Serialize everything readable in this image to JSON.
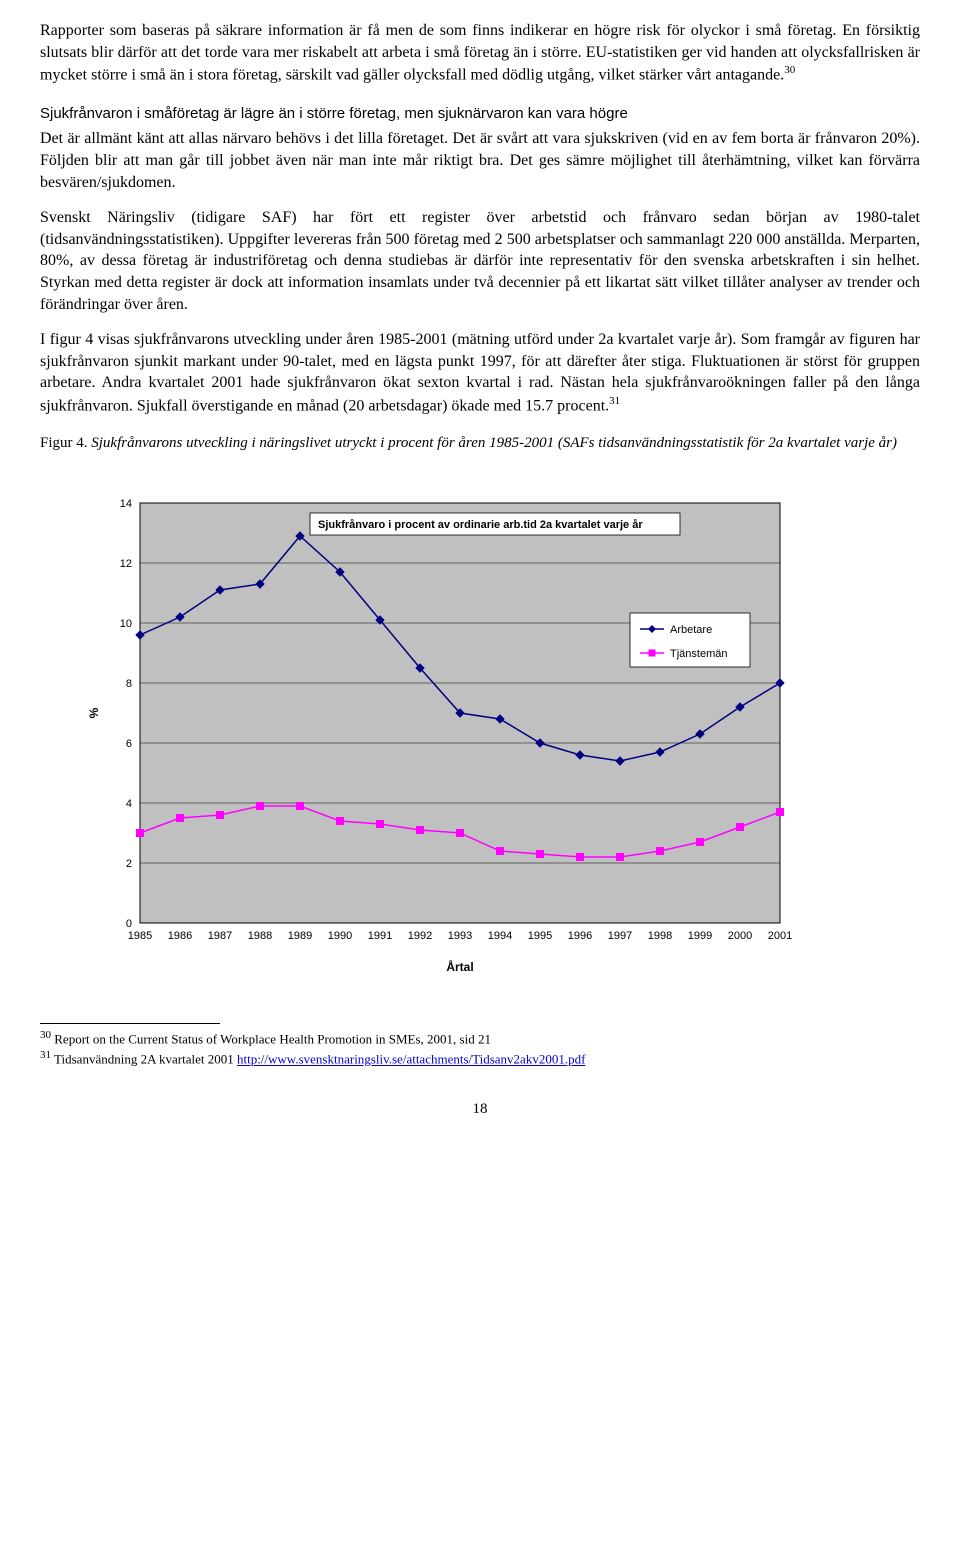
{
  "paragraphs": {
    "p1": "Rapporter som baseras på säkrare information är få men de som finns indikerar en högre risk för olyckor i små företag. En försiktig slutsats blir därför att det torde vara mer riskabelt att arbeta i små företag än i större. EU-statistiken ger vid handen att olycksfallrisken är mycket större i små än i stora företag, särskilt vad gäller olycksfall med dödlig utgång, vilket stärker vårt antagande.",
    "p1_sup": "30",
    "subheading": "Sjukfrånvaron i småföretag är lägre än i större företag, men sjuknärvaron kan vara högre",
    "p2": "Det är allmänt känt att allas närvaro behövs i det lilla företaget. Det är svårt att vara sjukskriven (vid en av fem borta är frånvaron 20%). Följden blir att man går till jobbet även när man inte mår riktigt bra. Det ges sämre möjlighet till återhämtning, vilket kan förvärra besvären/sjukdomen.",
    "p3": "Svenskt Näringsliv (tidigare SAF) har fört ett register över arbetstid och frånvaro sedan början av 1980-talet (tidsanvändningsstatistiken). Uppgifter levereras från 500 företag med 2 500 arbetsplatser och sammanlagt 220 000 anställda. Merparten, 80%, av dessa företag är industriföretag och denna studiebas är därför inte representativ för den svenska arbetskraften i sin helhet. Styrkan med detta register är dock att information insamlats under två decennier på ett likartat sätt vilket tillåter analyser av trender och förändringar över åren.",
    "p4_a": "I figur 4 visas sjukfrånvarons utveckling under åren 1985-2001 (mätning utförd under 2a kvartalet varje år). Som framgår av figuren har sjukfrånvaron sjunkit markant under 90-talet, med en lägsta punkt 1997, för att därefter åter stiga. Fluktuationen är störst för gruppen arbetare. Andra kvartalet 2001 hade sjukfrånvaron ökat sexton kvartal i rad. Nästan hela sjukfrånvaroökningen faller på den långa sjukfrånvaron. Sjukfall överstigande en månad (20 arbetsdagar) ökade med 15.7 procent.",
    "p4_sup": "31"
  },
  "figure": {
    "label": "Figur 4. ",
    "caption_italic": "Sjukfrånvarons utveckling i näringslivet utryckt i procent för åren 1985-2001 (SAFs tidsanvändningsstatistik för 2a kvartalet varje år)"
  },
  "chart": {
    "type": "line",
    "title": "Sjukfrånvaro i procent av ordinarie arb.tid 2a kvartalet varje år",
    "x_label": "Årtal",
    "y_label": "%",
    "categories": [
      "1985",
      "1986",
      "1987",
      "1988",
      "1989",
      "1990",
      "1991",
      "1992",
      "1993",
      "1994",
      "1995",
      "1996",
      "1997",
      "1998",
      "1999",
      "2000",
      "2001"
    ],
    "ylim": [
      0,
      14
    ],
    "ytick_step": 2,
    "background_color": "#c0c0c0",
    "grid_color": "#000000",
    "series": [
      {
        "name": "Arbetare",
        "color": "#000080",
        "marker": "diamond",
        "values": [
          9.6,
          10.2,
          11.1,
          11.3,
          12.9,
          11.7,
          10.1,
          8.5,
          7.0,
          6.8,
          6.0,
          5.6,
          5.4,
          5.7,
          6.3,
          7.2,
          8.0
        ]
      },
      {
        "name": "Tjänstemän",
        "color": "#ff00ff",
        "marker": "square",
        "values": [
          3.0,
          3.5,
          3.6,
          3.9,
          3.9,
          3.4,
          3.3,
          3.1,
          3.0,
          2.4,
          2.3,
          2.2,
          2.2,
          2.4,
          2.7,
          3.2,
          3.7
        ]
      }
    ],
    "legend": {
      "position": "right-inside"
    },
    "title_fontsize": 11,
    "label_fontsize": 11
  },
  "footnotes": {
    "fn30_sup": "30",
    "fn30": " Report on the Current Status of Workplace Health Promotion in SMEs, 2001, sid 21",
    "fn31_sup": "31",
    "fn31_text": " Tidsanvändning 2A kvartalet 2001 ",
    "fn31_link": "http://www.svensktnaringsliv.se/attachments/Tidsanv2akv2001.pdf"
  },
  "page_number": "18"
}
